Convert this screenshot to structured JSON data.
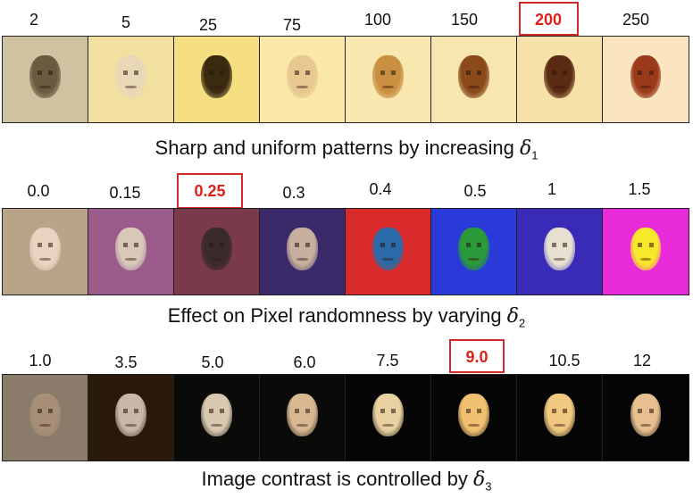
{
  "rows": [
    {
      "labels": [
        "2",
        "5",
        "25",
        "75",
        "100",
        "150",
        "200",
        "250"
      ],
      "highlighted_index": 6,
      "caption_text": "Sharp and uniform patterns by increasing ",
      "caption_symbol": "δ",
      "caption_subscript": "1",
      "tiles": [
        {
          "bg": "#cfc2a0",
          "face": "#6a5a40"
        },
        {
          "bg": "#f2e0a0",
          "face": "#e8d8b8"
        },
        {
          "bg": "#f6df80",
          "face": "#3a2a10"
        },
        {
          "bg": "#fbe8a8",
          "face": "#e8c890"
        },
        {
          "bg": "#f8e8b0",
          "face": "#c89040"
        },
        {
          "bg": "#f8e6b0",
          "face": "#8a4a1a"
        },
        {
          "bg": "#f6e2a8",
          "face": "#5a2a12"
        },
        {
          "bg": "#fbe4c0",
          "face": "#9a3a1a"
        }
      ]
    },
    {
      "labels": [
        "0.0",
        "0.15",
        "0.25",
        "0.3",
        "0.4",
        "0.5",
        "1",
        "1.5"
      ],
      "highlighted_index": 2,
      "caption_text": "Effect on Pixel randomness by varying ",
      "caption_symbol": "δ",
      "caption_subscript": "2",
      "tiles": [
        {
          "bg": "#b8a488",
          "face": "#e8d4c0"
        },
        {
          "bg": "#9a5a8a",
          "face": "#d8c8b8"
        },
        {
          "bg": "#7a3a4a",
          "face": "#3a2a2a"
        },
        {
          "bg": "#3a2a6a",
          "face": "#c8b0a0"
        },
        {
          "bg": "#d82a2a",
          "face": "#2a6aa8"
        },
        {
          "bg": "#2a3ad8",
          "face": "#2a9a3a"
        },
        {
          "bg": "#3a2ab8",
          "face": "#e8e0d0"
        },
        {
          "bg": "#e82ad8",
          "face": "#f8e82a"
        }
      ]
    },
    {
      "labels": [
        "1.0",
        "3.5",
        "5.0",
        "6.0",
        "7.5",
        "9.0",
        "10.5",
        "12"
      ],
      "highlighted_index": 5,
      "caption_text": "Image contrast is controlled by ",
      "caption_symbol": "δ",
      "caption_subscript": "3",
      "tiles": [
        {
          "bg": "#8a7a6a",
          "face": "#a89078"
        },
        {
          "bg": "#2a1a0a",
          "face": "#c8b8a8"
        },
        {
          "bg": "#0a0a08",
          "face": "#d8c8b0"
        },
        {
          "bg": "#0a0a08",
          "face": "#d8b890"
        },
        {
          "bg": "#050505",
          "face": "#e8d0a0"
        },
        {
          "bg": "#050505",
          "face": "#f0c070"
        },
        {
          "bg": "#050505",
          "face": "#f0c880"
        },
        {
          "bg": "#050505",
          "face": "#e8c090"
        }
      ]
    }
  ]
}
